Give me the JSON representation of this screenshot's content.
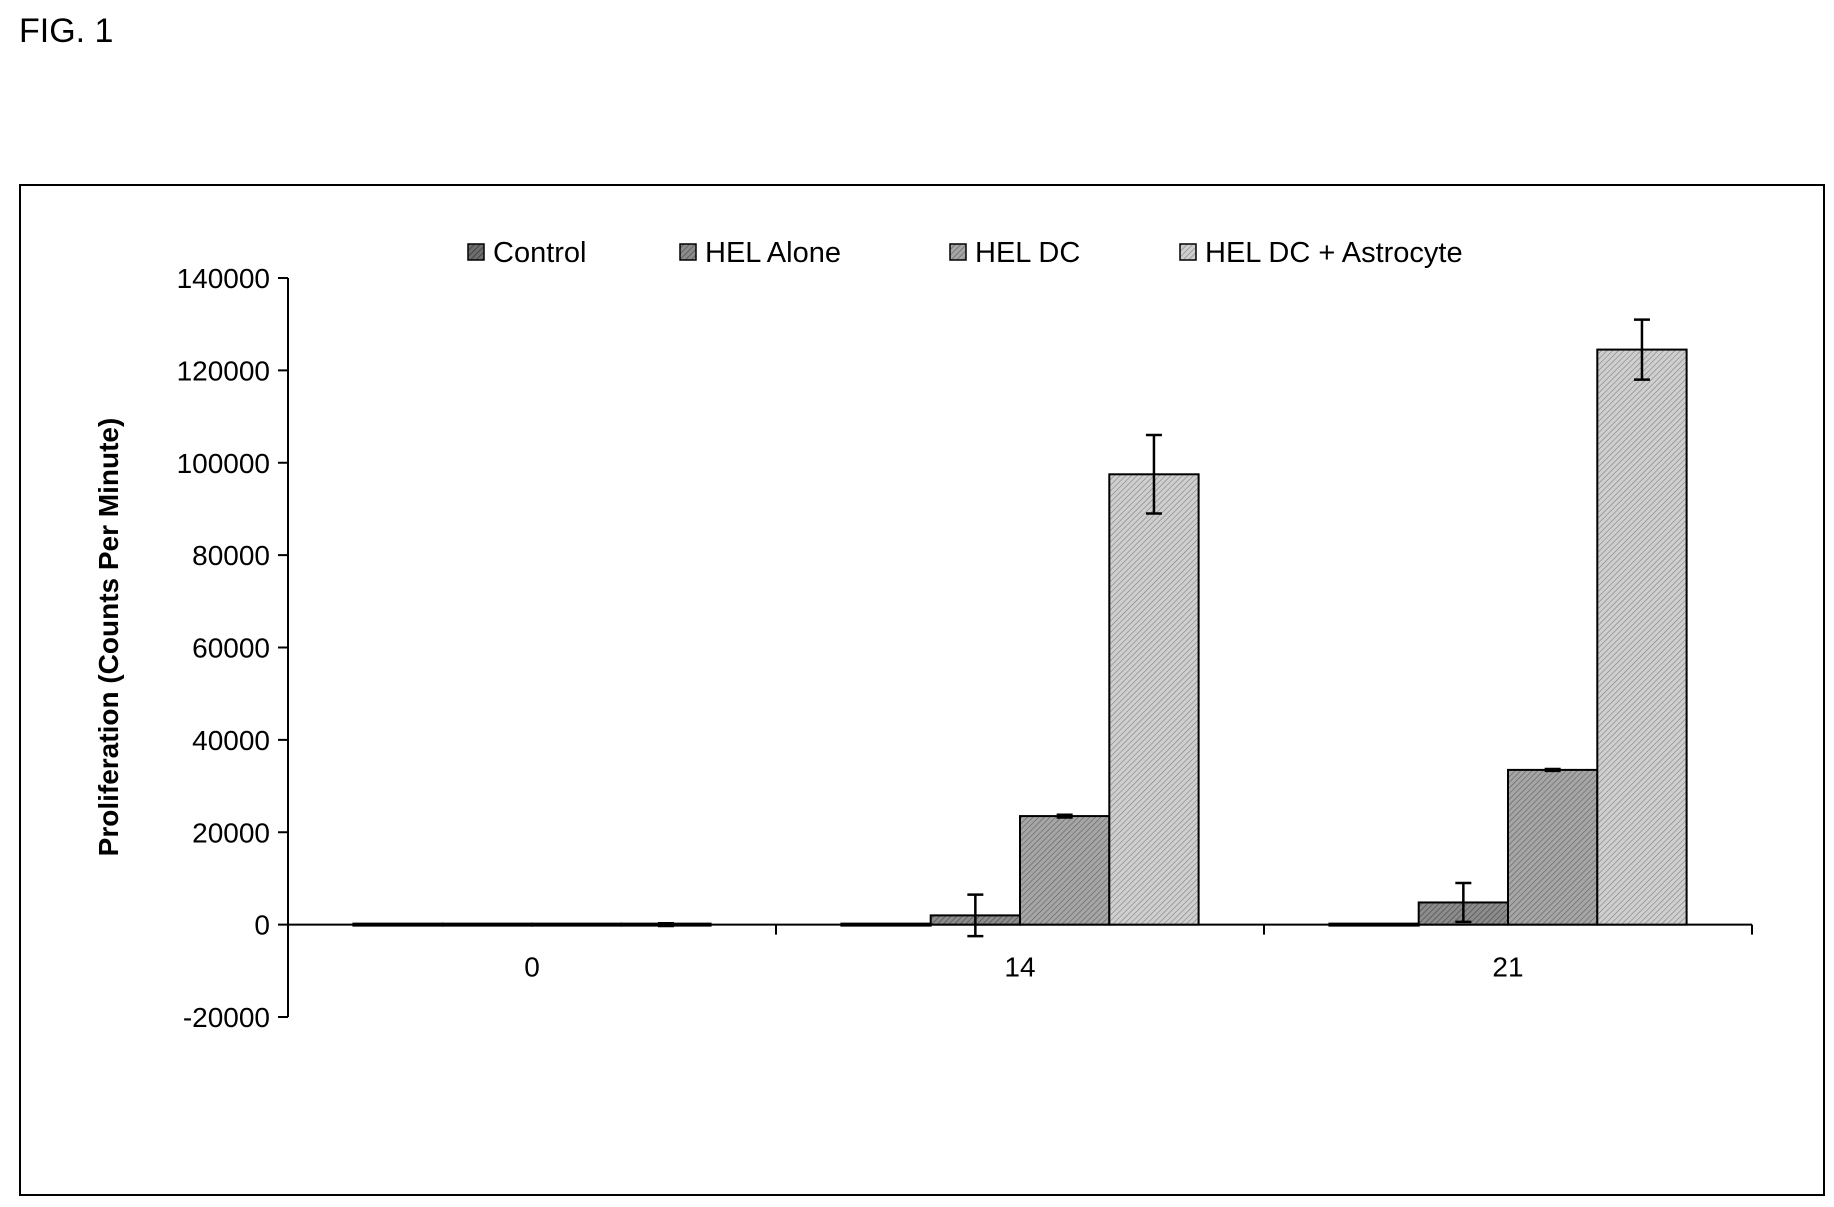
{
  "figure": {
    "label": "FIG. 1"
  },
  "chart_data": {
    "type": "bar",
    "title": "",
    "xlabel": "",
    "ylabel": "Proliferation  (Counts Per Minute)",
    "ylim": [
      -20000,
      140000
    ],
    "yticks": [
      -20000,
      0,
      20000,
      40000,
      60000,
      80000,
      100000,
      120000,
      140000
    ],
    "ytick_labels": [
      "-20000",
      "0",
      "20000",
      "40000",
      "60000",
      "80000",
      "100000",
      "120000",
      "140000"
    ],
    "categories": [
      "0",
      "14",
      "21"
    ],
    "legend_position": "top",
    "grid": false,
    "series": [
      {
        "name": "Control",
        "values": [
          0,
          0,
          0
        ],
        "errors": [
          0,
          0,
          0
        ],
        "color": "#555555"
      },
      {
        "name": "HEL Alone",
        "values": [
          0,
          2000,
          4800
        ],
        "errors": [
          0,
          4500,
          4200
        ],
        "color": "#7a7a7a"
      },
      {
        "name": "HEL DC",
        "values": [
          0,
          23500,
          33500
        ],
        "errors": [
          0,
          300,
          200
        ],
        "color": "#969696"
      },
      {
        "name": "HEL DC + Astrocyte",
        "values": [
          0,
          97500,
          124500
        ],
        "errors": [
          300,
          8500,
          6500
        ],
        "color": "#bdbdbd"
      }
    ]
  }
}
